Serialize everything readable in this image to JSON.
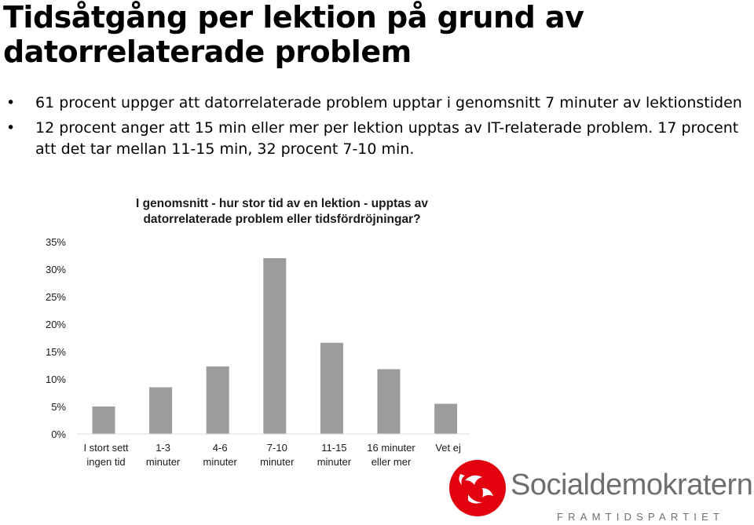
{
  "slide": {
    "title": "Tidsåtgång per lektion på grund av datorrelaterade problem",
    "bullets": [
      "61 procent uppger att datorrelaterade problem upptar i genomsnitt 7 minuter av lektionstiden",
      "12 procent anger att 15 min eller mer per lektion upptas av IT-relaterade problem. 17 procent att det tar mellan 11-15 min, 32 procent 7-10 min."
    ]
  },
  "chart_data": {
    "type": "bar",
    "title": "I genomsnitt - hur stor tid av en lektion - upptas av datorrelaterade problem eller tidsfördröjningar?",
    "categories": [
      [
        "I stort sett",
        "ingen tid"
      ],
      [
        "1-3",
        "minuter"
      ],
      [
        "4-6",
        "minuter"
      ],
      [
        "7-10",
        "minuter"
      ],
      [
        "11-15",
        "minuter"
      ],
      [
        "16 minuter",
        "eller mer"
      ],
      [
        "Vet ej"
      ]
    ],
    "values": [
      5,
      8.5,
      12.3,
      32,
      16.6,
      11.8,
      5.5
    ],
    "yticks": [
      "0%",
      "5%",
      "10%",
      "15%",
      "20%",
      "25%",
      "30%",
      "35%"
    ],
    "ylim": [
      0,
      35
    ],
    "grid": false,
    "bar_color": "#9b9c9e"
  },
  "logo": {
    "brand": "Socialdemokraterna",
    "tagline": "FRAMTIDSPARTIET",
    "rose_color": "#e3000f"
  }
}
